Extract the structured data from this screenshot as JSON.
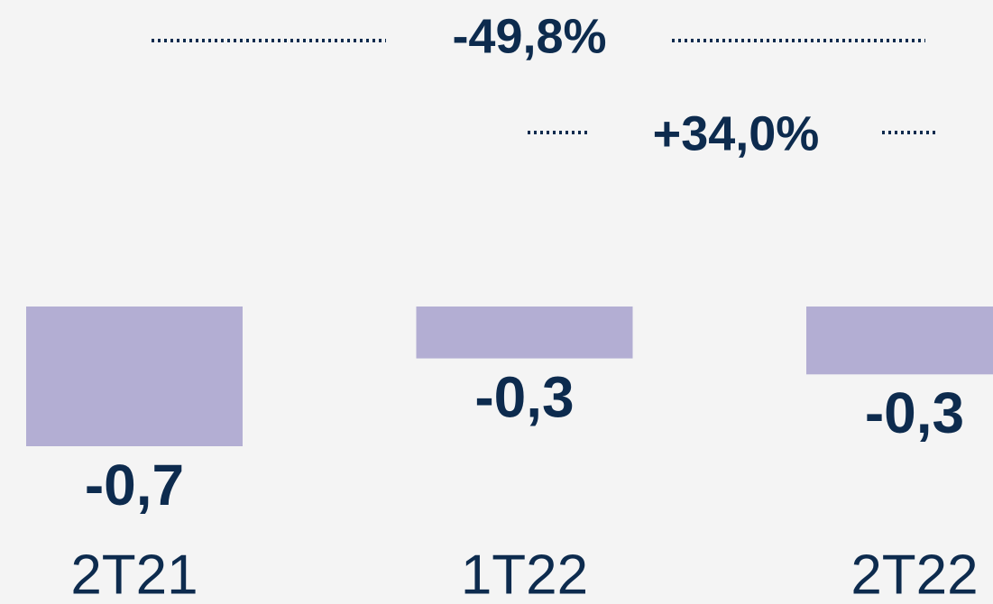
{
  "chart_data": {
    "type": "bar",
    "categories": [
      "2T21",
      "1T22",
      "2T22"
    ],
    "values": [
      -0.7,
      -0.26,
      -0.34
    ],
    "value_labels": [
      "-0,7",
      "-0,3",
      "-0,3"
    ],
    "color": "#b3aed3",
    "ylim": [
      -0.7,
      0
    ],
    "annotations": [
      {
        "text": "-49,8%"
      },
      {
        "text": "+34,0%"
      }
    ]
  }
}
